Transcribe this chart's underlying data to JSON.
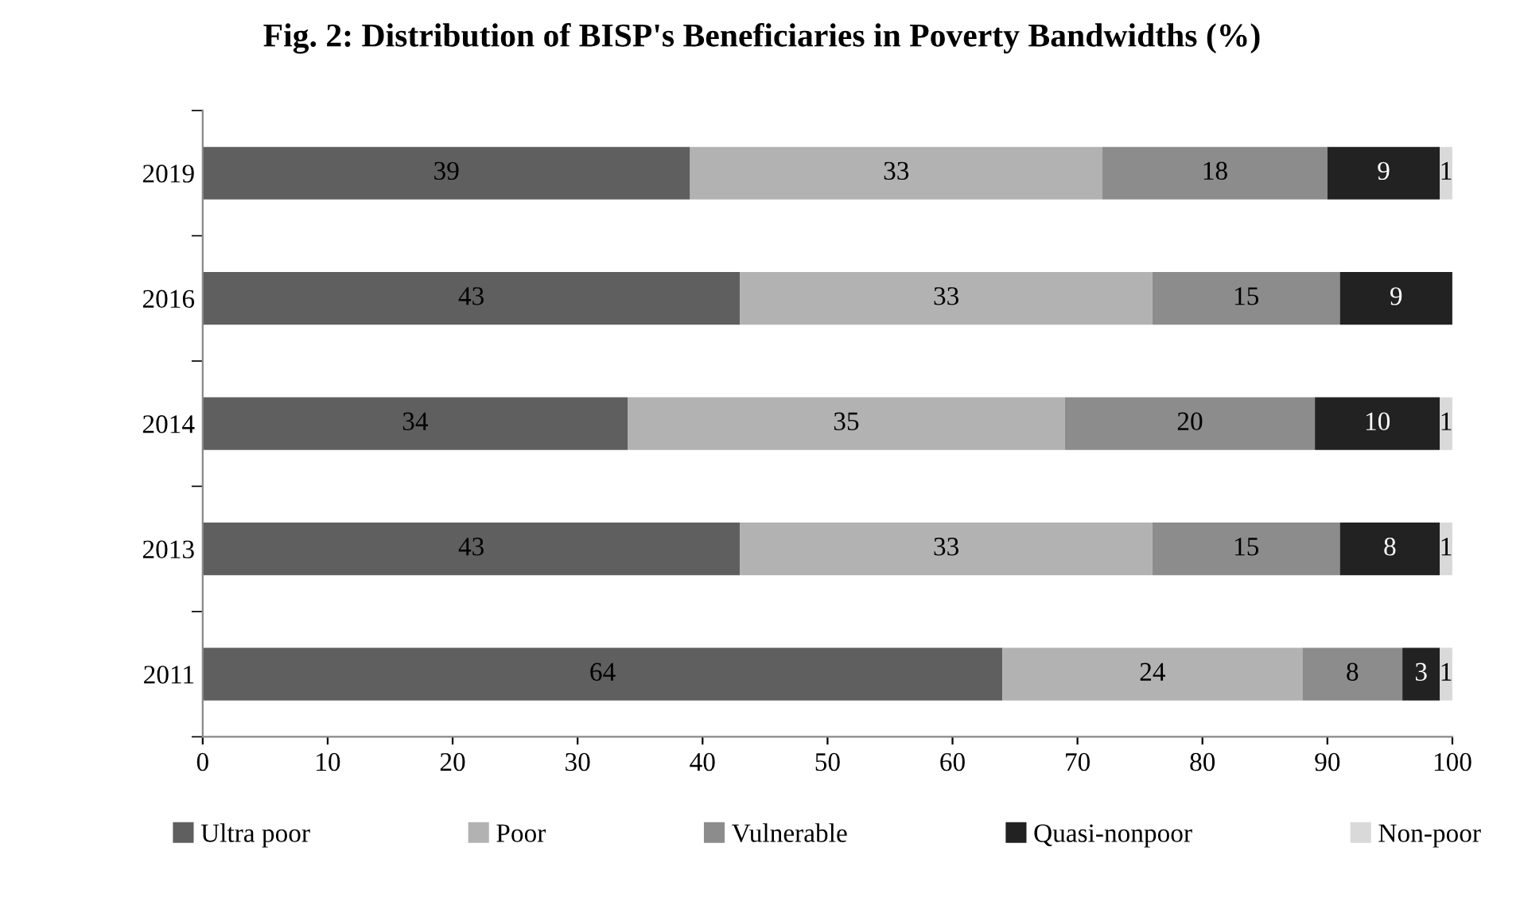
{
  "chart_data": {
    "type": "bar",
    "orientation": "horizontal",
    "stacked": true,
    "title": "Fig. 2: Distribution of BISP's Beneficiaries in Poverty Bandwidths (%)",
    "categories": [
      "2019",
      "2016",
      "2014",
      "2013",
      "2011"
    ],
    "series": [
      {
        "name": "Ultra poor",
        "color": "#5f5f5f",
        "values": [
          39,
          43,
          34,
          43,
          64
        ],
        "value_labels": [
          "39",
          "43",
          "34",
          "43",
          "64"
        ]
      },
      {
        "name": "Poor",
        "color": "#b2b2b2",
        "values": [
          33,
          33,
          35,
          33,
          24
        ],
        "value_labels": [
          "33",
          "33",
          "35",
          "33",
          "24"
        ]
      },
      {
        "name": "Vulnerable",
        "color": "#8c8c8c",
        "values": [
          18,
          15,
          20,
          15,
          8
        ],
        "value_labels": [
          "18",
          "15",
          "20",
          "15",
          "8"
        ]
      },
      {
        "name": "Quasi-nonpoor",
        "color": "#222222",
        "values": [
          9,
          9,
          10,
          8,
          3
        ],
        "value_labels": [
          "9",
          "9",
          "10",
          "8",
          "3"
        ]
      },
      {
        "name": "Non-poor",
        "color": "#d9d9d9",
        "values": [
          1,
          null,
          1,
          1,
          1
        ],
        "value_labels": [
          "1",
          null,
          "1",
          "1",
          "1"
        ]
      }
    ],
    "xlim": [
      0,
      100
    ],
    "xticks": [
      0,
      10,
      20,
      30,
      40,
      50,
      60,
      70,
      80,
      90,
      100
    ],
    "grid": false,
    "legend": "bottom"
  }
}
